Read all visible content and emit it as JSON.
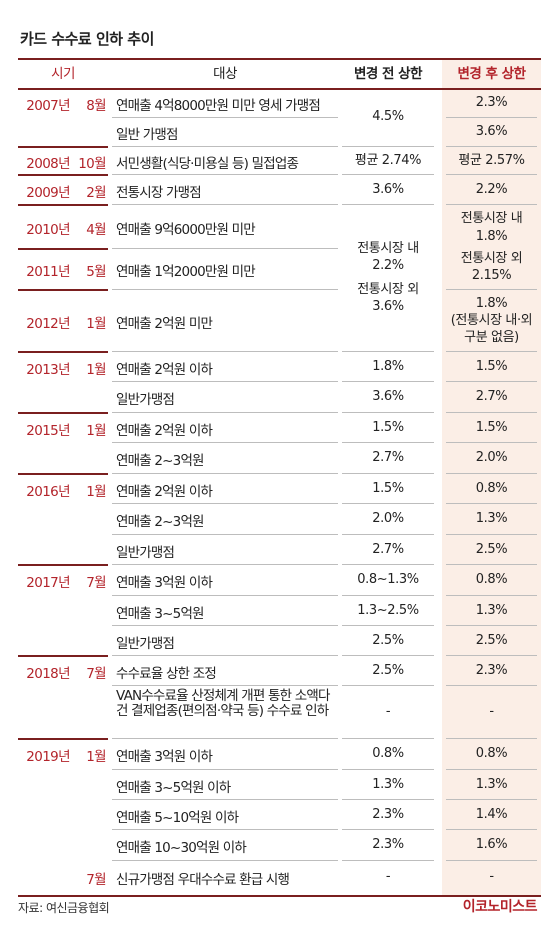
{
  "title": "카드 수수료 인하 추이",
  "headers": {
    "era": "시기",
    "target": "대상",
    "before": "변경 전 상한",
    "after": "변경 후 상한"
  },
  "rows": [
    {
      "year": "2007년",
      "month": "8월",
      "target": "연매출 4억8000만원 미만 영세 가맹점",
      "before": "4.5%",
      "after": "2.3%"
    },
    {
      "year": "",
      "month": "",
      "target": "일반 가맹점",
      "before": "",
      "after": "3.6%"
    },
    {
      "year": "2008년",
      "month": "10월",
      "target": "서민생활(식당·미용실 등) 밀접업종",
      "before": "평균 2.74%",
      "after": "평균 2.57%"
    },
    {
      "year": "2009년",
      "month": "2월",
      "target": "전통시장 가맹점",
      "before": "3.6%",
      "after": "2.2%"
    },
    {
      "year": "2010년",
      "month": "4월",
      "target": "연매출 9억6000만원 미만",
      "before": "",
      "after": ""
    },
    {
      "year": "2011년",
      "month": "5월",
      "target": "연매출 1억2000만원 미만",
      "before": "",
      "after": ""
    },
    {
      "year": "2012년",
      "month": "1월",
      "target": "연매출 2억원 미만",
      "before": "",
      "after": ""
    },
    {
      "year": "2013년",
      "month": "1월",
      "target": "연매출 2억원 이하",
      "before": "1.8%",
      "after": "1.5%"
    },
    {
      "year": "",
      "month": "",
      "target": "일반가맹점",
      "before": "3.6%",
      "after": "2.7%"
    },
    {
      "year": "2015년",
      "month": "1월",
      "target": "연매출 2억원 이하",
      "before": "1.5%",
      "after": "1.5%"
    },
    {
      "year": "",
      "month": "",
      "target": "연매출 2~3억원",
      "before": "2.7%",
      "after": "2.0%"
    },
    {
      "year": "2016년",
      "month": "1월",
      "target": "연매출 2억원 이하",
      "before": "1.5%",
      "after": "0.8%"
    },
    {
      "year": "",
      "month": "",
      "target": "연매출 2~3억원",
      "before": "2.0%",
      "after": "1.3%"
    },
    {
      "year": "",
      "month": "",
      "target": "일반가맹점",
      "before": "2.7%",
      "after": "2.5%"
    },
    {
      "year": "2017년",
      "month": "7월",
      "target": "연매출 3억원 이하",
      "before": "0.8~1.3%",
      "after": "0.8%"
    },
    {
      "year": "",
      "month": "",
      "target": "연매출 3~5억원",
      "before": "1.3~2.5%",
      "after": "1.3%"
    },
    {
      "year": "",
      "month": "",
      "target": "일반가맹점",
      "before": "2.5%",
      "after": "2.5%"
    },
    {
      "year": "2018년",
      "month": "7월",
      "target": "수수료율 상한 조정",
      "before": "2.5%",
      "after": "2.3%"
    },
    {
      "year": "",
      "month": "",
      "target": "VAN수수료율 산정체계 개편 통한 소액다건 결제업종(편의점·약국 등) 수수료 인하",
      "before": "-",
      "after": "-"
    },
    {
      "year": "2019년",
      "month": "1월",
      "target": "연매출 3억원 이하",
      "before": "0.8%",
      "after": "0.8%"
    },
    {
      "year": "",
      "month": "",
      "target": "연매출 3~5억원 이하",
      "before": "1.3%",
      "after": "1.3%"
    },
    {
      "year": "",
      "month": "",
      "target": "연매출 5~10억원 이하",
      "before": "2.3%",
      "after": "1.4%"
    },
    {
      "year": "",
      "month": "",
      "target": "연매출 10~30억원 이하",
      "before": "2.3%",
      "after": "1.6%"
    },
    {
      "year": "",
      "month": "7월",
      "target": "신규가맹점 우대수수료 환급 시행",
      "before": "-",
      "after": "-"
    }
  ],
  "merged": {
    "before_2010_2012_l1": "전통시장 내",
    "before_2010_2012_l2": "2.2%",
    "before_2010_2012_l3": "전통시장 외",
    "before_2010_2012_l4": "3.6%",
    "after_2010_2011_l1": "전통시장 내",
    "after_2010_2011_l2": "1.8%",
    "after_2010_2011_l3": "전통시장 외",
    "after_2010_2011_l4": "2.15%",
    "after_2012_l1": "1.8%",
    "after_2012_l2": "(전통시장 내·외",
    "after_2012_l3": "구분 없음)"
  },
  "footer": {
    "source": "자료: 여신금융협회",
    "brand": "이코노미스트"
  }
}
